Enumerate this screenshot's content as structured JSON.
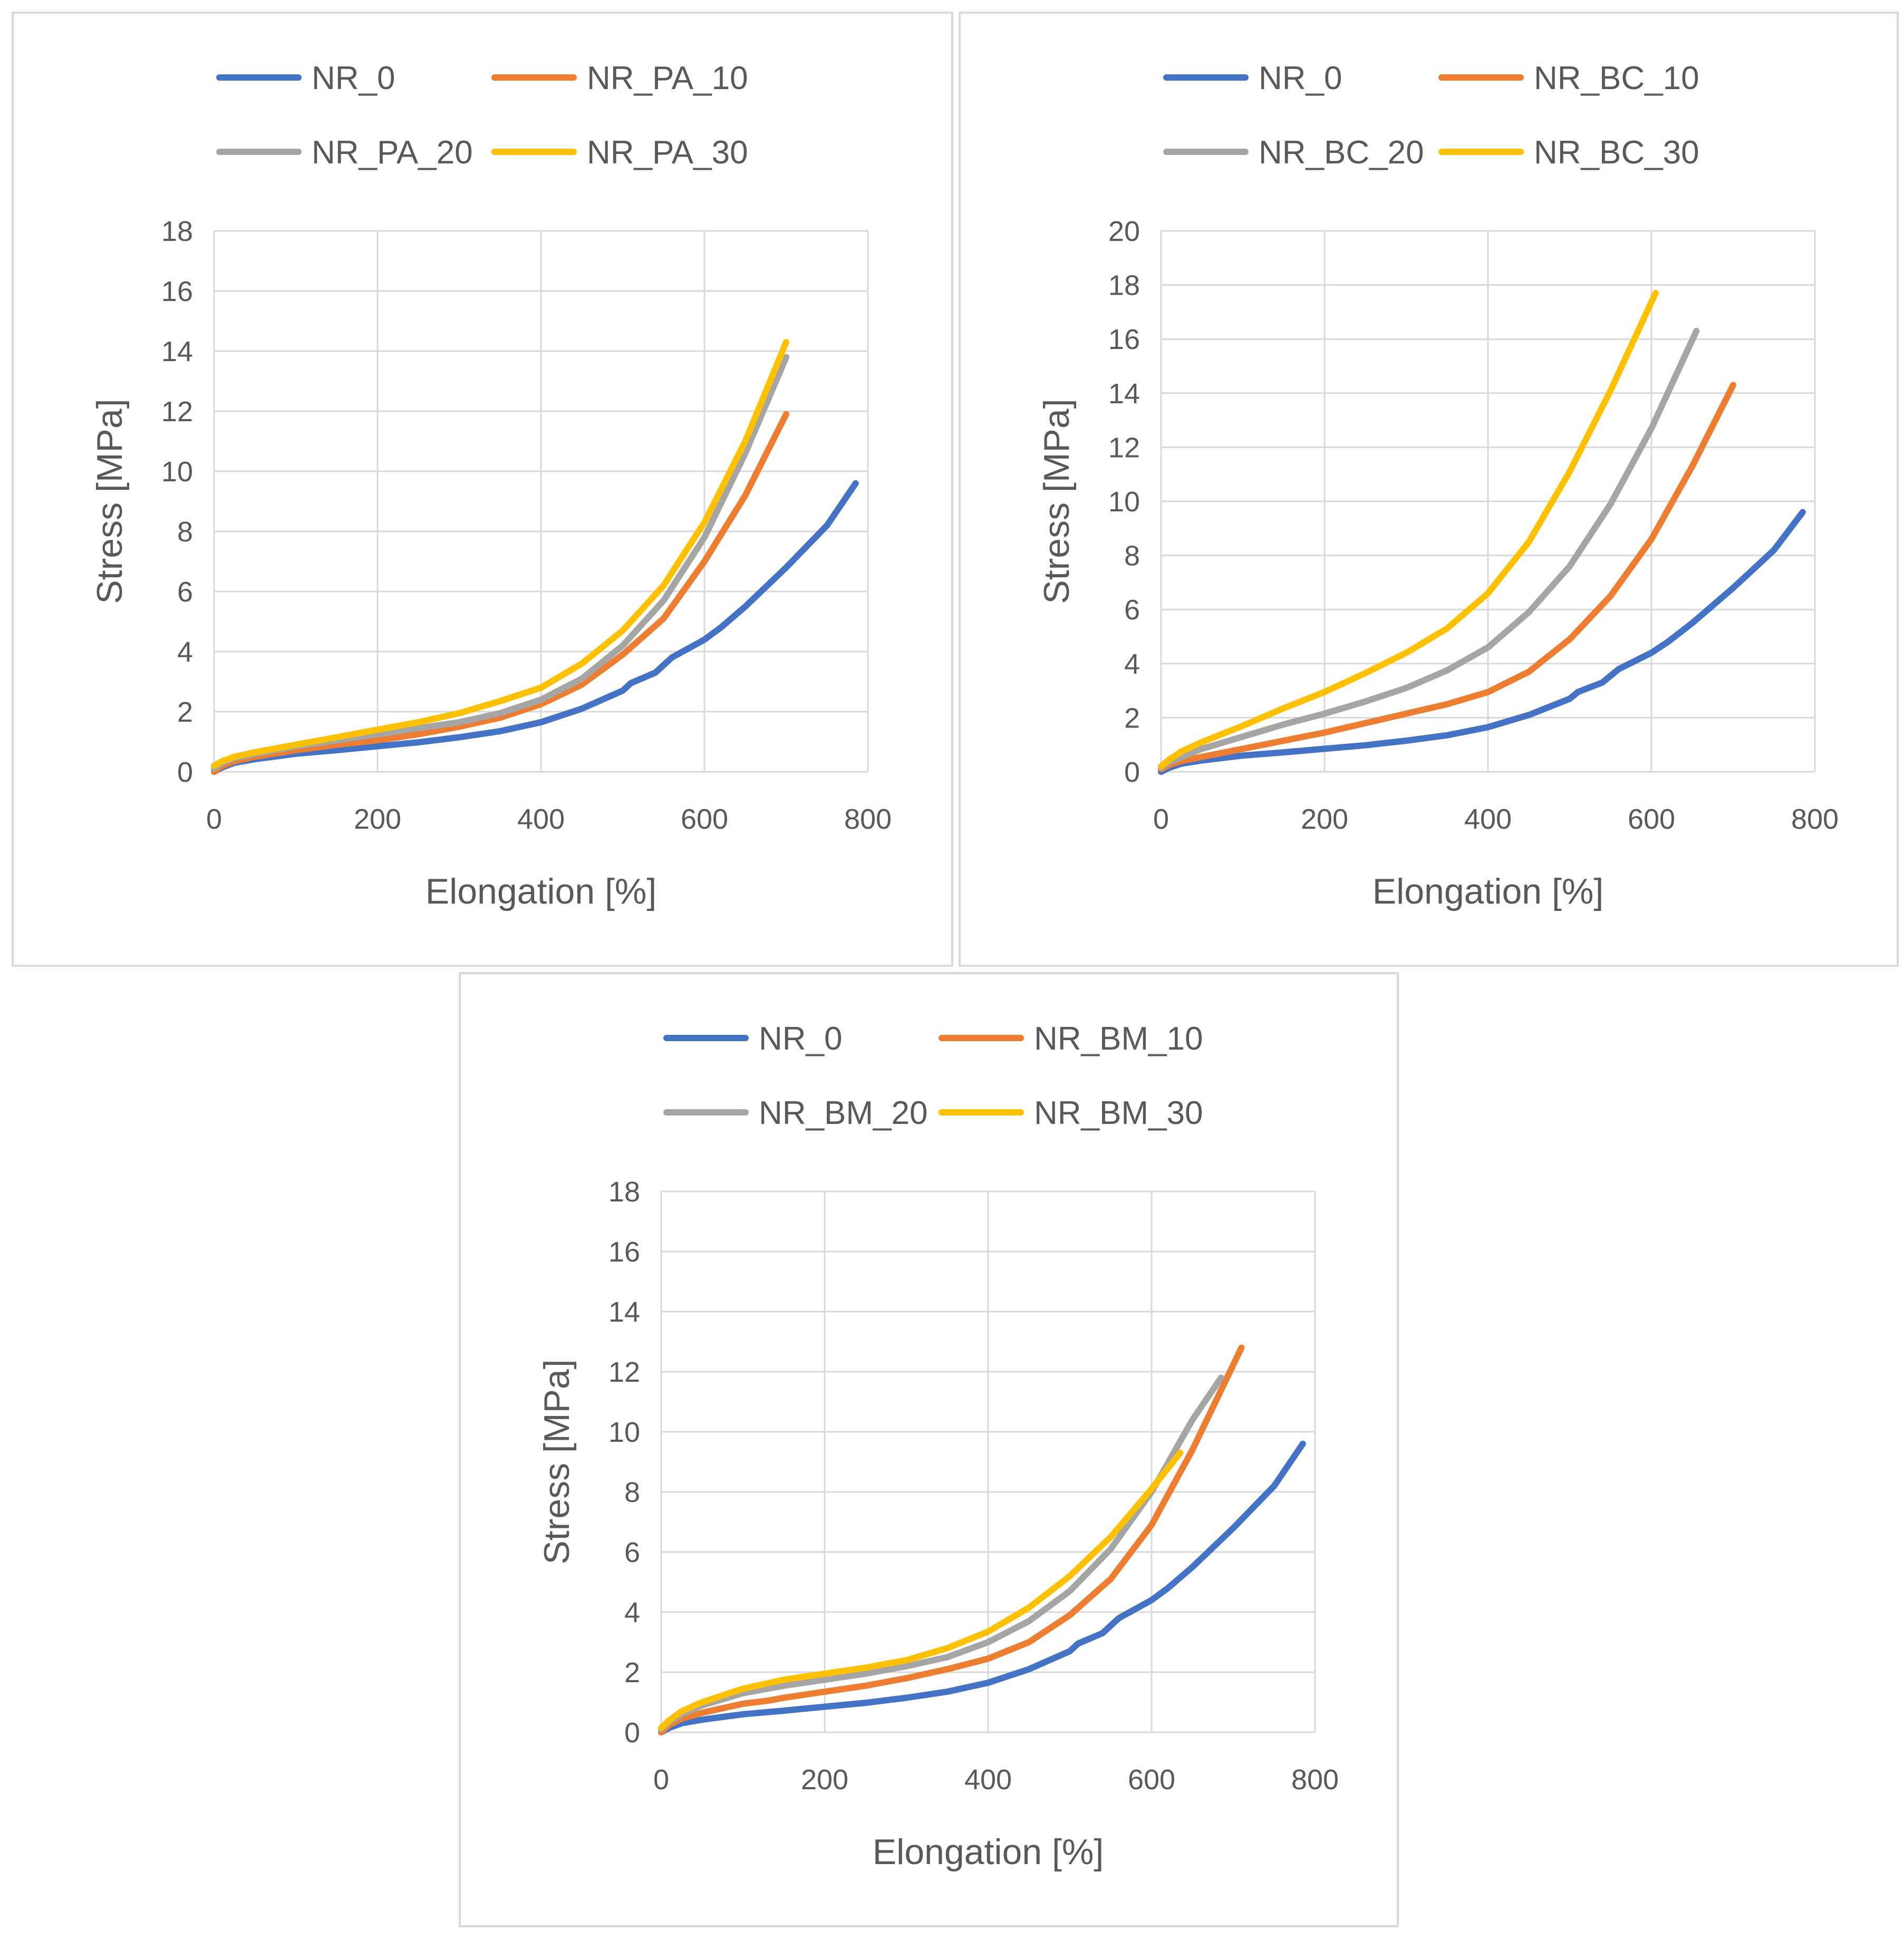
{
  "colors": {
    "blue": "#4472c4",
    "orange": "#ed7d31",
    "gray": "#a5a5a5",
    "yellow": "#ffc000",
    "grid": "#d9d9d9",
    "text": "#595959"
  },
  "chart_data": [
    {
      "type": "line",
      "title": "",
      "xlabel": "Elongation [%]",
      "ylabel": "Stress [MPa]",
      "xlim": [
        0,
        800
      ],
      "ylim": [
        0,
        18
      ],
      "xticks": [
        "0",
        "200",
        "400",
        "600",
        "800"
      ],
      "yticks": [
        "0",
        "2",
        "4",
        "6",
        "8",
        "10",
        "12",
        "14",
        "16",
        "18"
      ],
      "legend": "top",
      "grid": true,
      "series": [
        {
          "name": "NR_0",
          "color": "#4472c4",
          "x": [
            0,
            10,
            25,
            50,
            100,
            150,
            200,
            250,
            300,
            350,
            400,
            450,
            500,
            510,
            540,
            560,
            600,
            620,
            650,
            700,
            750,
            785
          ],
          "y": [
            0,
            0.15,
            0.3,
            0.42,
            0.6,
            0.72,
            0.85,
            0.98,
            1.15,
            1.35,
            1.65,
            2.1,
            2.7,
            2.95,
            3.3,
            3.8,
            4.4,
            4.8,
            5.5,
            6.8,
            8.2,
            9.6
          ]
        },
        {
          "name": "NR_PA_10",
          "color": "#ed7d31",
          "x": [
            0,
            10,
            25,
            50,
            100,
            150,
            200,
            250,
            300,
            350,
            400,
            450,
            500,
            550,
            600,
            650,
            700
          ],
          "y": [
            0,
            0.2,
            0.35,
            0.5,
            0.72,
            0.9,
            1.05,
            1.25,
            1.5,
            1.8,
            2.25,
            2.9,
            3.9,
            5.1,
            7.0,
            9.2,
            11.9
          ]
        },
        {
          "name": "NR_PA_20",
          "color": "#a5a5a5",
          "x": [
            0,
            10,
            25,
            50,
            100,
            150,
            200,
            250,
            300,
            350,
            400,
            450,
            500,
            550,
            600,
            650,
            700
          ],
          "y": [
            0.1,
            0.3,
            0.45,
            0.6,
            0.85,
            1.05,
            1.25,
            1.45,
            1.65,
            1.95,
            2.4,
            3.1,
            4.2,
            5.7,
            7.8,
            10.6,
            13.8
          ]
        },
        {
          "name": "NR_PA_30",
          "color": "#ffc000",
          "x": [
            0,
            10,
            25,
            50,
            100,
            150,
            200,
            250,
            300,
            350,
            400,
            450,
            500,
            550,
            600,
            650,
            700
          ],
          "y": [
            0.2,
            0.35,
            0.5,
            0.65,
            0.9,
            1.15,
            1.4,
            1.65,
            1.95,
            2.35,
            2.8,
            3.6,
            4.7,
            6.2,
            8.3,
            11.0,
            14.3
          ]
        }
      ]
    },
    {
      "type": "line",
      "title": "",
      "xlabel": "Elongation [%]",
      "ylabel": "Stress [MPa]",
      "xlim": [
        0,
        800
      ],
      "ylim": [
        0,
        20
      ],
      "xticks": [
        "0",
        "200",
        "400",
        "600",
        "800"
      ],
      "yticks": [
        "0",
        "2",
        "4",
        "6",
        "8",
        "10",
        "12",
        "14",
        "16",
        "18",
        "20"
      ],
      "legend": "top",
      "grid": true,
      "series": [
        {
          "name": "NR_0",
          "color": "#4472c4",
          "x": [
            0,
            10,
            25,
            50,
            100,
            150,
            200,
            250,
            300,
            350,
            400,
            450,
            500,
            510,
            540,
            560,
            600,
            620,
            650,
            700,
            750,
            785
          ],
          "y": [
            0,
            0.15,
            0.3,
            0.42,
            0.6,
            0.72,
            0.85,
            0.98,
            1.15,
            1.35,
            1.65,
            2.1,
            2.7,
            2.95,
            3.3,
            3.8,
            4.4,
            4.8,
            5.5,
            6.8,
            8.2,
            9.6
          ]
        },
        {
          "name": "NR_BC_10",
          "color": "#ed7d31",
          "x": [
            0,
            10,
            25,
            50,
            100,
            150,
            200,
            250,
            300,
            350,
            400,
            450,
            500,
            550,
            600,
            650,
            700
          ],
          "y": [
            0.1,
            0.25,
            0.4,
            0.55,
            0.85,
            1.15,
            1.45,
            1.8,
            2.15,
            2.5,
            2.95,
            3.7,
            4.9,
            6.5,
            8.6,
            11.3,
            14.3
          ]
        },
        {
          "name": "NR_BC_20",
          "color": "#a5a5a5",
          "x": [
            0,
            10,
            25,
            50,
            100,
            150,
            200,
            250,
            300,
            350,
            400,
            450,
            500,
            550,
            600,
            655
          ],
          "y": [
            0.15,
            0.35,
            0.55,
            0.85,
            1.3,
            1.75,
            2.15,
            2.6,
            3.1,
            3.75,
            4.6,
            5.9,
            7.6,
            9.9,
            12.7,
            16.3
          ]
        },
        {
          "name": "NR_BC_30",
          "color": "#ffc000",
          "x": [
            0,
            10,
            25,
            50,
            100,
            150,
            200,
            250,
            300,
            350,
            400,
            450,
            500,
            550,
            605
          ],
          "y": [
            0.2,
            0.45,
            0.75,
            1.1,
            1.7,
            2.35,
            2.95,
            3.65,
            4.4,
            5.3,
            6.6,
            8.5,
            11.1,
            14.1,
            17.7
          ]
        }
      ]
    },
    {
      "type": "line",
      "title": "",
      "xlabel": "Elongation [%]",
      "ylabel": "Stress [MPa]",
      "xlim": [
        0,
        800
      ],
      "ylim": [
        0,
        18
      ],
      "xticks": [
        "0",
        "200",
        "400",
        "600",
        "800"
      ],
      "yticks": [
        "0",
        "2",
        "4",
        "6",
        "8",
        "10",
        "12",
        "14",
        "16",
        "18"
      ],
      "legend": "top",
      "grid": true,
      "series": [
        {
          "name": "NR_0",
          "color": "#4472c4",
          "x": [
            0,
            10,
            25,
            50,
            100,
            150,
            200,
            250,
            300,
            350,
            400,
            450,
            500,
            510,
            540,
            560,
            600,
            620,
            650,
            700,
            750,
            785
          ],
          "y": [
            0,
            0.15,
            0.3,
            0.42,
            0.6,
            0.72,
            0.85,
            0.98,
            1.15,
            1.35,
            1.65,
            2.1,
            2.7,
            2.95,
            3.3,
            3.8,
            4.4,
            4.8,
            5.5,
            6.8,
            8.2,
            9.6
          ]
        },
        {
          "name": "NR_BM_10",
          "color": "#ed7d31",
          "x": [
            0,
            10,
            25,
            50,
            100,
            130,
            150,
            200,
            250,
            300,
            350,
            400,
            450,
            500,
            550,
            600,
            650,
            710
          ],
          "y": [
            0,
            0.25,
            0.45,
            0.65,
            0.95,
            1.05,
            1.15,
            1.35,
            1.55,
            1.8,
            2.1,
            2.45,
            3.0,
            3.9,
            5.1,
            6.9,
            9.4,
            12.8
          ]
        },
        {
          "name": "NR_BM_20",
          "color": "#a5a5a5",
          "x": [
            0,
            10,
            25,
            50,
            100,
            150,
            200,
            250,
            300,
            350,
            400,
            450,
            500,
            550,
            600,
            650,
            685
          ],
          "y": [
            0.1,
            0.35,
            0.6,
            0.9,
            1.3,
            1.55,
            1.75,
            1.95,
            2.2,
            2.5,
            3.0,
            3.7,
            4.7,
            6.1,
            8.0,
            10.4,
            11.8
          ]
        },
        {
          "name": "NR_BM_30",
          "color": "#ffc000",
          "x": [
            0,
            10,
            25,
            50,
            100,
            150,
            200,
            250,
            300,
            350,
            400,
            450,
            500,
            550,
            600,
            635
          ],
          "y": [
            0.15,
            0.4,
            0.7,
            1.0,
            1.45,
            1.75,
            1.95,
            2.15,
            2.4,
            2.8,
            3.35,
            4.15,
            5.2,
            6.5,
            8.1,
            9.3
          ]
        }
      ]
    }
  ]
}
